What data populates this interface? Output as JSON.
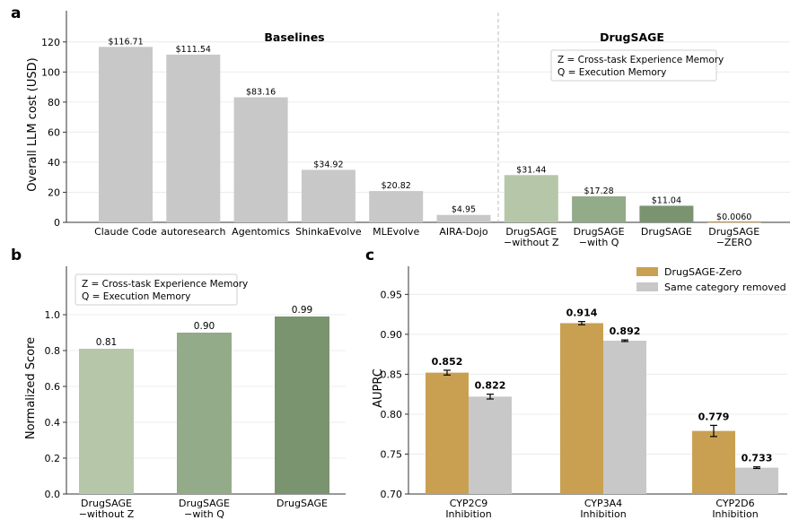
{
  "chart_data": [
    {
      "panel_label": "a",
      "type": "bar",
      "ylabel": "Overall LLM cost (USD)",
      "ylim": [
        0,
        130
      ],
      "yticks": [
        0,
        20,
        40,
        60,
        80,
        100,
        120
      ],
      "grid": true,
      "group_labels": [
        "Baselines",
        "DrugSAGE"
      ],
      "note_lines": [
        "Z = Cross-task Experience Memory",
        "Q = Execution Memory"
      ],
      "categories": [
        [
          "Claude Code"
        ],
        [
          "autoresearch"
        ],
        [
          "Agentomics"
        ],
        [
          "ShinkaEvolve"
        ],
        [
          "MLEvolve"
        ],
        [
          "AIRA-Dojo"
        ],
        [
          "DrugSAGE",
          "−without Z"
        ],
        [
          "DrugSAGE",
          "−with Q"
        ],
        [
          "DrugSAGE"
        ],
        [
          "DrugSAGE",
          "−ZERO"
        ]
      ],
      "values": [
        116.71,
        111.54,
        83.16,
        34.92,
        20.82,
        4.95,
        31.44,
        17.28,
        11.04,
        0.006
      ],
      "value_labels": [
        "$116.71",
        "$111.54",
        "$83.16",
        "$34.92",
        "$20.82",
        "$4.95",
        "$31.44",
        "$17.28",
        "$11.04",
        "$0.0060"
      ],
      "colors": [
        "#c8c8c8",
        "#c8c8c8",
        "#c8c8c8",
        "#c8c8c8",
        "#c8c8c8",
        "#c8c8c8",
        "#b5c7a8",
        "#93ab88",
        "#7a9470",
        "#c9a052"
      ],
      "group_colors": [
        "#5a6f8f",
        "#6b8a55"
      ]
    },
    {
      "panel_label": "b",
      "type": "bar",
      "ylabel": "Normalized Score",
      "ylim": [
        0,
        1.18
      ],
      "yticks": [
        0.0,
        0.2,
        0.4,
        0.6,
        0.8,
        1.0
      ],
      "ytick_labels": [
        "0.0",
        "0.2",
        "0.4",
        "0.6",
        "0.8",
        "1.0"
      ],
      "grid": true,
      "note_lines": [
        "Z = Cross-task Experience Memory",
        "Q = Execution Memory"
      ],
      "categories": [
        [
          "DrugSAGE",
          "−without Z"
        ],
        [
          "DrugSAGE",
          "−with Q"
        ],
        [
          "DrugSAGE"
        ]
      ],
      "values": [
        0.81,
        0.9,
        0.99
      ],
      "value_labels": [
        "0.81",
        "0.90",
        "0.99"
      ],
      "colors": [
        "#b5c7a8",
        "#93ab88",
        "#7a9470"
      ]
    },
    {
      "panel_label": "c",
      "type": "bar",
      "ylabel": "AUPRC",
      "ylim": [
        0.7,
        0.965
      ],
      "yticks": [
        0.7,
        0.75,
        0.8,
        0.85,
        0.9,
        0.95
      ],
      "ytick_labels": [
        "0.70",
        "0.75",
        "0.80",
        "0.85",
        "0.90",
        "0.95"
      ],
      "grid": true,
      "legend_position": "top-right",
      "categories": [
        [
          "CYP2C9",
          "Inhibition"
        ],
        [
          "CYP3A4",
          "Inhibition"
        ],
        [
          "CYP2D6",
          "Inhibition"
        ]
      ],
      "series": [
        {
          "name": "DrugSAGE-Zero",
          "color": "#c9a052",
          "values": [
            0.852,
            0.914,
            0.779
          ],
          "errors": [
            0.003,
            0.002,
            0.007
          ],
          "value_labels": [
            "0.852",
            "0.914",
            "0.779"
          ]
        },
        {
          "name": "Same category removed",
          "color": "#c8c8c8",
          "values": [
            0.822,
            0.892,
            0.733
          ],
          "errors": [
            0.003,
            0.001,
            0.001
          ],
          "value_labels": [
            "0.822",
            "0.892",
            "0.733"
          ]
        }
      ]
    }
  ]
}
